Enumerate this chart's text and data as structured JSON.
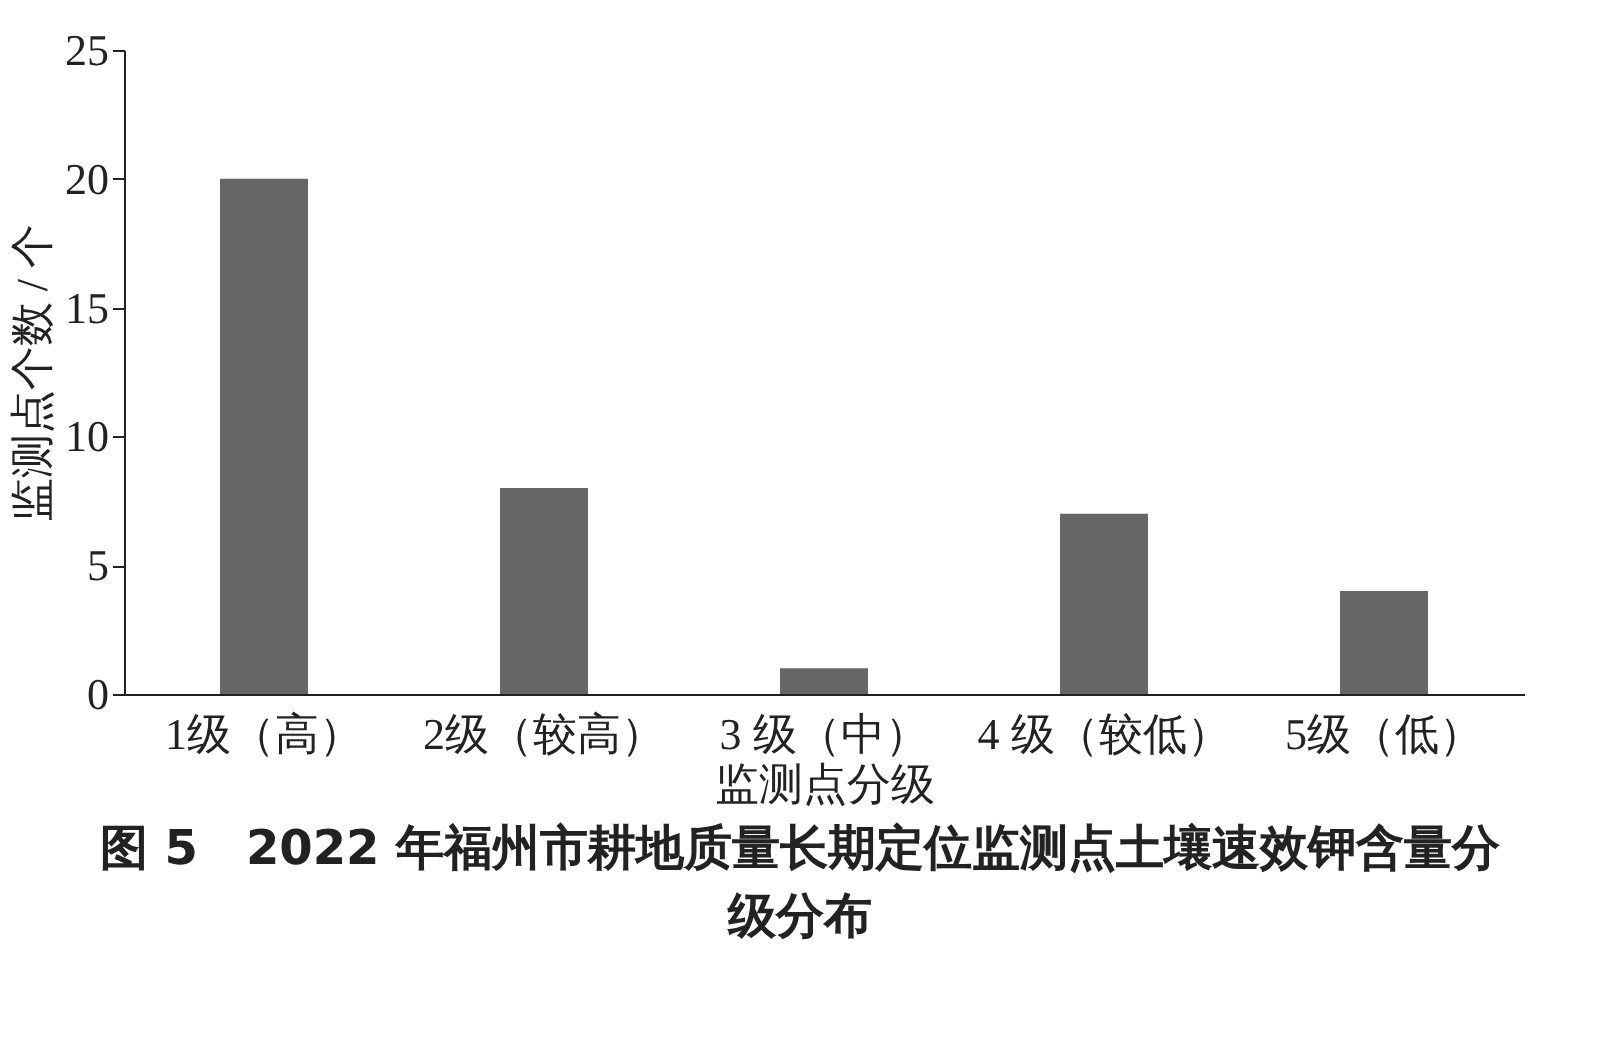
{
  "chart_data": {
    "type": "bar",
    "title": "图 5　2022 年福州市耕地质量长期定位监测点土壤速效钾含量分级分布",
    "xlabel": "监测点分级",
    "ylabel": "监测点个数 / 个",
    "categories": [
      "1级（高）",
      "2级（较高）",
      "3 级（中）",
      "4 级（较低）",
      "5级（低）"
    ],
    "values": [
      20,
      8,
      1,
      7,
      4
    ],
    "color": "#666666",
    "ylim": [
      0,
      25
    ],
    "yticks": [
      0,
      5,
      10,
      15,
      20,
      25
    ],
    "grid": false
  }
}
